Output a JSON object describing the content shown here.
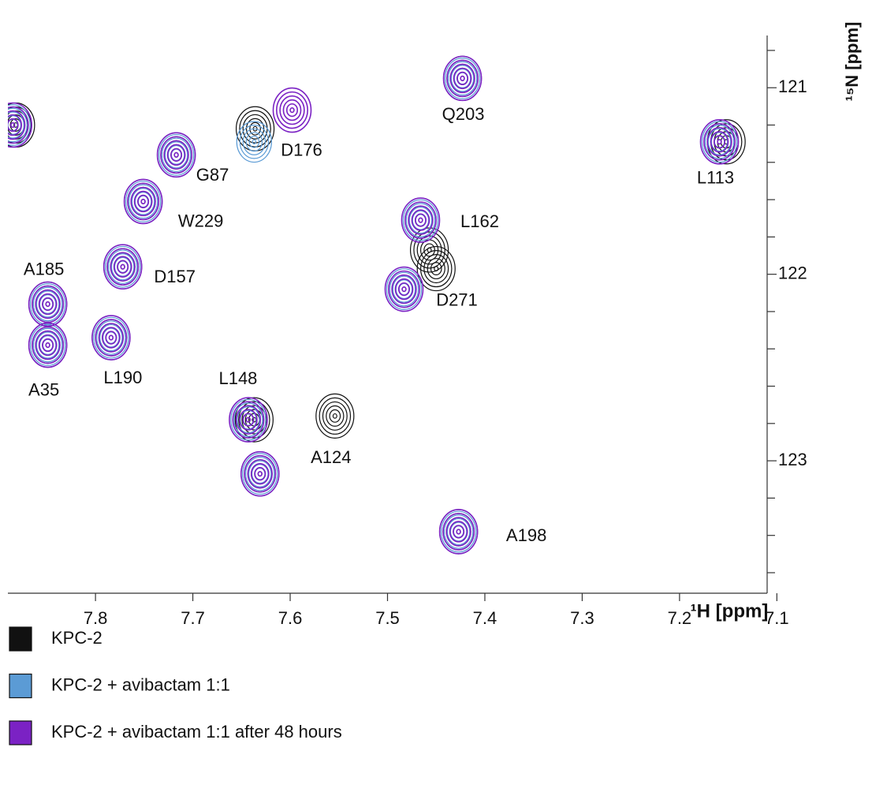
{
  "chart_data": {
    "type": "nmr-contour",
    "xlabel": "¹H [ppm]",
    "ylabel": "¹⁵N [ppm]",
    "xlim": [
      7.89,
      7.11
    ],
    "ylim": [
      120.72,
      123.71
    ],
    "xticks": [
      7.8,
      7.7,
      7.6,
      7.5,
      7.4,
      7.3,
      7.2,
      7.1
    ],
    "yticks": [
      121,
      122,
      123
    ],
    "yminor_ticks": [
      120.8,
      121.2,
      121.4,
      121.6,
      121.8,
      122.2,
      122.4,
      122.6,
      122.8,
      123.2,
      123.4,
      123.6
    ],
    "categories": [
      null,
      "Q203",
      "D176",
      "L113",
      "G87",
      "W229",
      "L162",
      "D157",
      "D271",
      "A185",
      "A35",
      "L190",
      "L148",
      "A124",
      null,
      "A198"
    ],
    "series": [
      {
        "name": "KPC-2",
        "color": "#111111",
        "x": [
          7.882,
          7.423,
          7.636,
          7.152,
          7.717,
          7.751,
          7.457,
          7.772,
          7.45,
          7.849,
          7.849,
          7.784,
          7.637,
          7.554,
          7.631,
          7.427
        ],
        "values": [
          121.2,
          120.95,
          121.22,
          121.29,
          121.36,
          121.61,
          121.87,
          121.96,
          121.97,
          122.16,
          122.38,
          122.34,
          122.78,
          122.76,
          123.07,
          123.38
        ]
      },
      {
        "name": "KPC-2 + avibactam 1:1",
        "color": "#5b9bd5",
        "x": [
          7.885,
          7.423,
          7.637,
          7.159,
          7.717,
          7.751,
          7.466,
          7.772,
          7.483,
          7.849,
          7.849,
          7.784,
          7.643,
          null,
          7.631,
          7.427
        ],
        "values": [
          121.2,
          120.95,
          121.29,
          121.29,
          121.36,
          121.61,
          121.71,
          121.96,
          122.08,
          122.16,
          122.38,
          122.34,
          122.78,
          null,
          123.07,
          123.38
        ]
      },
      {
        "name": "KPC-2 + avibactam 1:1 after 48 hours",
        "color": "#7b22c4",
        "x": [
          7.885,
          7.423,
          7.598,
          7.159,
          7.717,
          7.751,
          7.466,
          7.772,
          7.483,
          7.849,
          7.849,
          7.784,
          7.643,
          null,
          7.631,
          7.427
        ],
        "values": [
          121.2,
          120.95,
          121.12,
          121.29,
          121.36,
          121.61,
          121.71,
          121.96,
          122.08,
          122.16,
          122.38,
          122.34,
          122.78,
          null,
          123.07,
          123.38
        ]
      }
    ]
  }
}
